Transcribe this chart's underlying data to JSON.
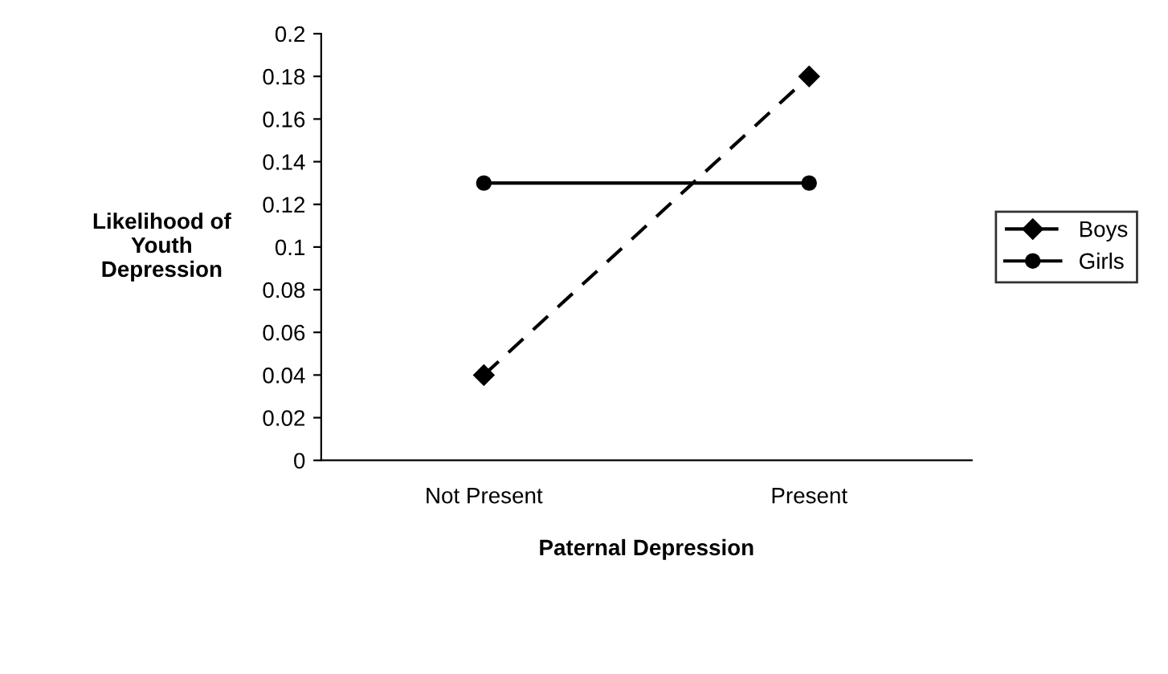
{
  "chart_data": {
    "type": "line",
    "xlabel": "Paternal Depression",
    "ylabel": "Likelihood of\nYouth\nDepression",
    "categories": [
      "Not Present",
      "Present"
    ],
    "series": [
      {
        "name": "Boys",
        "color": "#000000",
        "values": [
          0.04,
          0.18
        ],
        "marker": "diamond",
        "line_style": "dashed"
      },
      {
        "name": "Girls",
        "color": "#000000",
        "values": [
          0.13,
          0.13
        ],
        "marker": "circle",
        "line_style": "solid"
      }
    ],
    "ylim": [
      0,
      0.2
    ],
    "yticks": [
      0,
      0.02,
      0.04,
      0.06,
      0.08,
      0.1,
      0.12,
      0.14,
      0.16,
      0.18,
      0.2
    ],
    "grid": false,
    "legend": "right"
  }
}
